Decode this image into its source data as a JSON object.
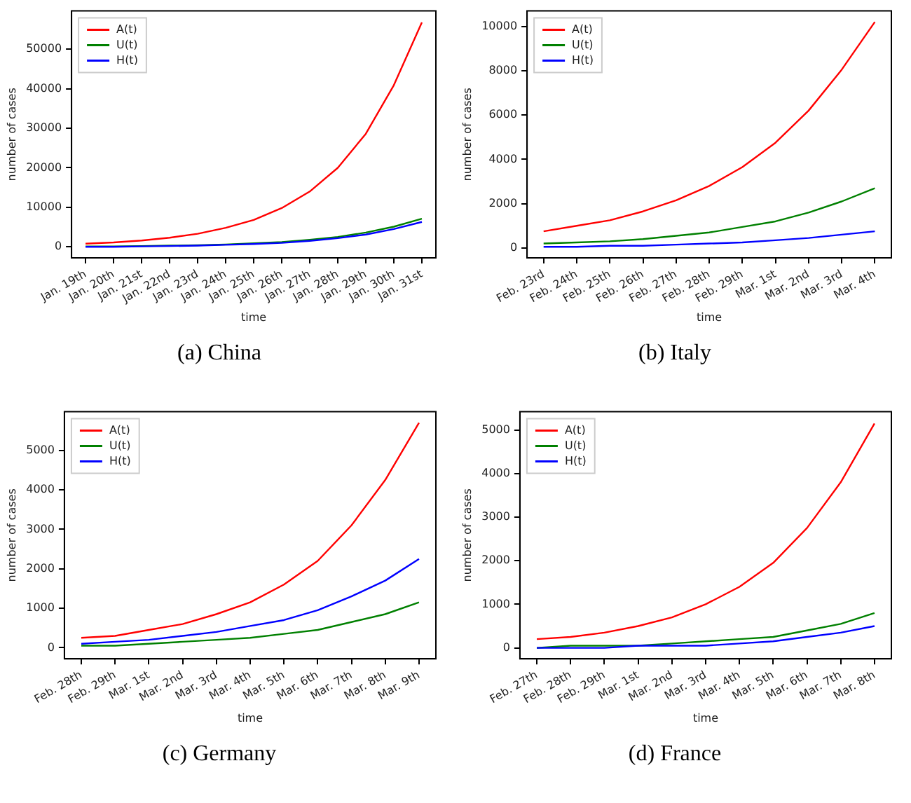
{
  "chart_data": [
    {
      "type": "line",
      "title": "(a) China",
      "xlabel": "time",
      "ylabel": "number of cases",
      "legend": "top left",
      "grid": false,
      "marker": "none",
      "line_style": "solid",
      "categories": [
        "Jan. 19th",
        "Jan. 20th",
        "Jan. 21st",
        "Jan. 22nd",
        "Jan. 23rd",
        "Jan. 24th",
        "Jan. 25th",
        "Jan. 26th",
        "Jan. 27th",
        "Jan. 28th",
        "Jan. 29th",
        "Jan. 30th",
        "Jan. 31st"
      ],
      "ylim": [
        -2800,
        59700
      ],
      "yticks": [
        0,
        10000,
        20000,
        30000,
        40000,
        50000
      ],
      "series": [
        {
          "name": "A(t)",
          "color": "#ff0000",
          "values": [
            800,
            1100,
            1600,
            2300,
            3300,
            4800,
            6800,
            9800,
            14000,
            20000,
            28600,
            40900,
            56800
          ]
        },
        {
          "name": "U(t)",
          "color": "#008000",
          "values": [
            100,
            100,
            200,
            300,
            400,
            600,
            900,
            1200,
            1800,
            2500,
            3600,
            5100,
            7100
          ]
        },
        {
          "name": "H(t)",
          "color": "#0000ff",
          "values": [
            0,
            0,
            100,
            200,
            300,
            500,
            700,
            1000,
            1500,
            2200,
            3100,
            4500,
            6300
          ]
        }
      ]
    },
    {
      "type": "line",
      "title": "(b) Italy",
      "xlabel": "time",
      "ylabel": "number of cases",
      "legend": "top left",
      "grid": false,
      "marker": "none",
      "line_style": "solid",
      "categories": [
        "Feb. 23rd",
        "Feb. 24th",
        "Feb. 25th",
        "Feb. 26th",
        "Feb. 27th",
        "Feb. 28th",
        "Feb. 29th",
        "Mar. 1st",
        "Mar. 2nd",
        "Mar. 3rd",
        "Mar. 4th"
      ],
      "ylim": [
        -450,
        10700
      ],
      "yticks": [
        0,
        2000,
        4000,
        6000,
        8000,
        10000
      ],
      "series": [
        {
          "name": "A(t)",
          "color": "#ff0000",
          "values": [
            750,
            1000,
            1250,
            1650,
            2150,
            2800,
            3650,
            4750,
            6200,
            8050,
            10200
          ]
        },
        {
          "name": "U(t)",
          "color": "#008000",
          "values": [
            200,
            250,
            300,
            400,
            550,
            700,
            950,
            1200,
            1600,
            2100,
            2700
          ]
        },
        {
          "name": "H(t)",
          "color": "#0000ff",
          "values": [
            50,
            50,
            100,
            100,
            150,
            200,
            250,
            350,
            450,
            600,
            750
          ]
        }
      ]
    },
    {
      "type": "line",
      "title": "(c) Germany",
      "xlabel": "time",
      "ylabel": "number of cases",
      "legend": "top left",
      "grid": false,
      "marker": "none",
      "line_style": "solid",
      "categories": [
        "Feb. 28th",
        "Feb. 29th",
        "Mar. 1st",
        "Mar. 2nd",
        "Mar. 3rd",
        "Mar. 4th",
        "Mar. 5th",
        "Mar. 6th",
        "Mar. 7th",
        "Mar. 8th",
        "Mar. 9th"
      ],
      "ylim": [
        -280,
        5980
      ],
      "yticks": [
        0,
        1000,
        2000,
        3000,
        4000,
        5000
      ],
      "series": [
        {
          "name": "A(t)",
          "color": "#ff0000",
          "values": [
            250,
            300,
            450,
            600,
            850,
            1150,
            1600,
            2200,
            3100,
            4250,
            5700
          ]
        },
        {
          "name": "U(t)",
          "color": "#008000",
          "values": [
            50,
            50,
            100,
            150,
            200,
            250,
            350,
            450,
            650,
            850,
            1150
          ]
        },
        {
          "name": "H(t)",
          "color": "#0000ff",
          "values": [
            100,
            150,
            200,
            300,
            400,
            550,
            700,
            950,
            1300,
            1700,
            2250
          ]
        }
      ]
    },
    {
      "type": "line",
      "title": "(d) France",
      "xlabel": "time",
      "ylabel": "number of cases",
      "legend": "top left",
      "grid": false,
      "marker": "none",
      "line_style": "solid",
      "categories": [
        "Feb. 27th",
        "Feb. 28th",
        "Feb. 29th",
        "Mar. 1st",
        "Mar. 2nd",
        "Mar. 3rd",
        "Mar. 4th",
        "Mar. 5th",
        "Mar. 6th",
        "Mar. 7th",
        "Mar. 8th"
      ],
      "ylim": [
        -250,
        5420
      ],
      "yticks": [
        0,
        1000,
        2000,
        3000,
        4000,
        5000
      ],
      "series": [
        {
          "name": "A(t)",
          "color": "#ff0000",
          "values": [
            200,
            250,
            350,
            500,
            700,
            1000,
            1400,
            1950,
            2750,
            3800,
            5150
          ]
        },
        {
          "name": "U(t)",
          "color": "#008000",
          "values": [
            0,
            50,
            50,
            50,
            100,
            150,
            200,
            250,
            400,
            550,
            800
          ]
        },
        {
          "name": "H(t)",
          "color": "#0000ff",
          "values": [
            0,
            0,
            0,
            50,
            50,
            50,
            100,
            150,
            250,
            350,
            500
          ]
        }
      ]
    }
  ]
}
